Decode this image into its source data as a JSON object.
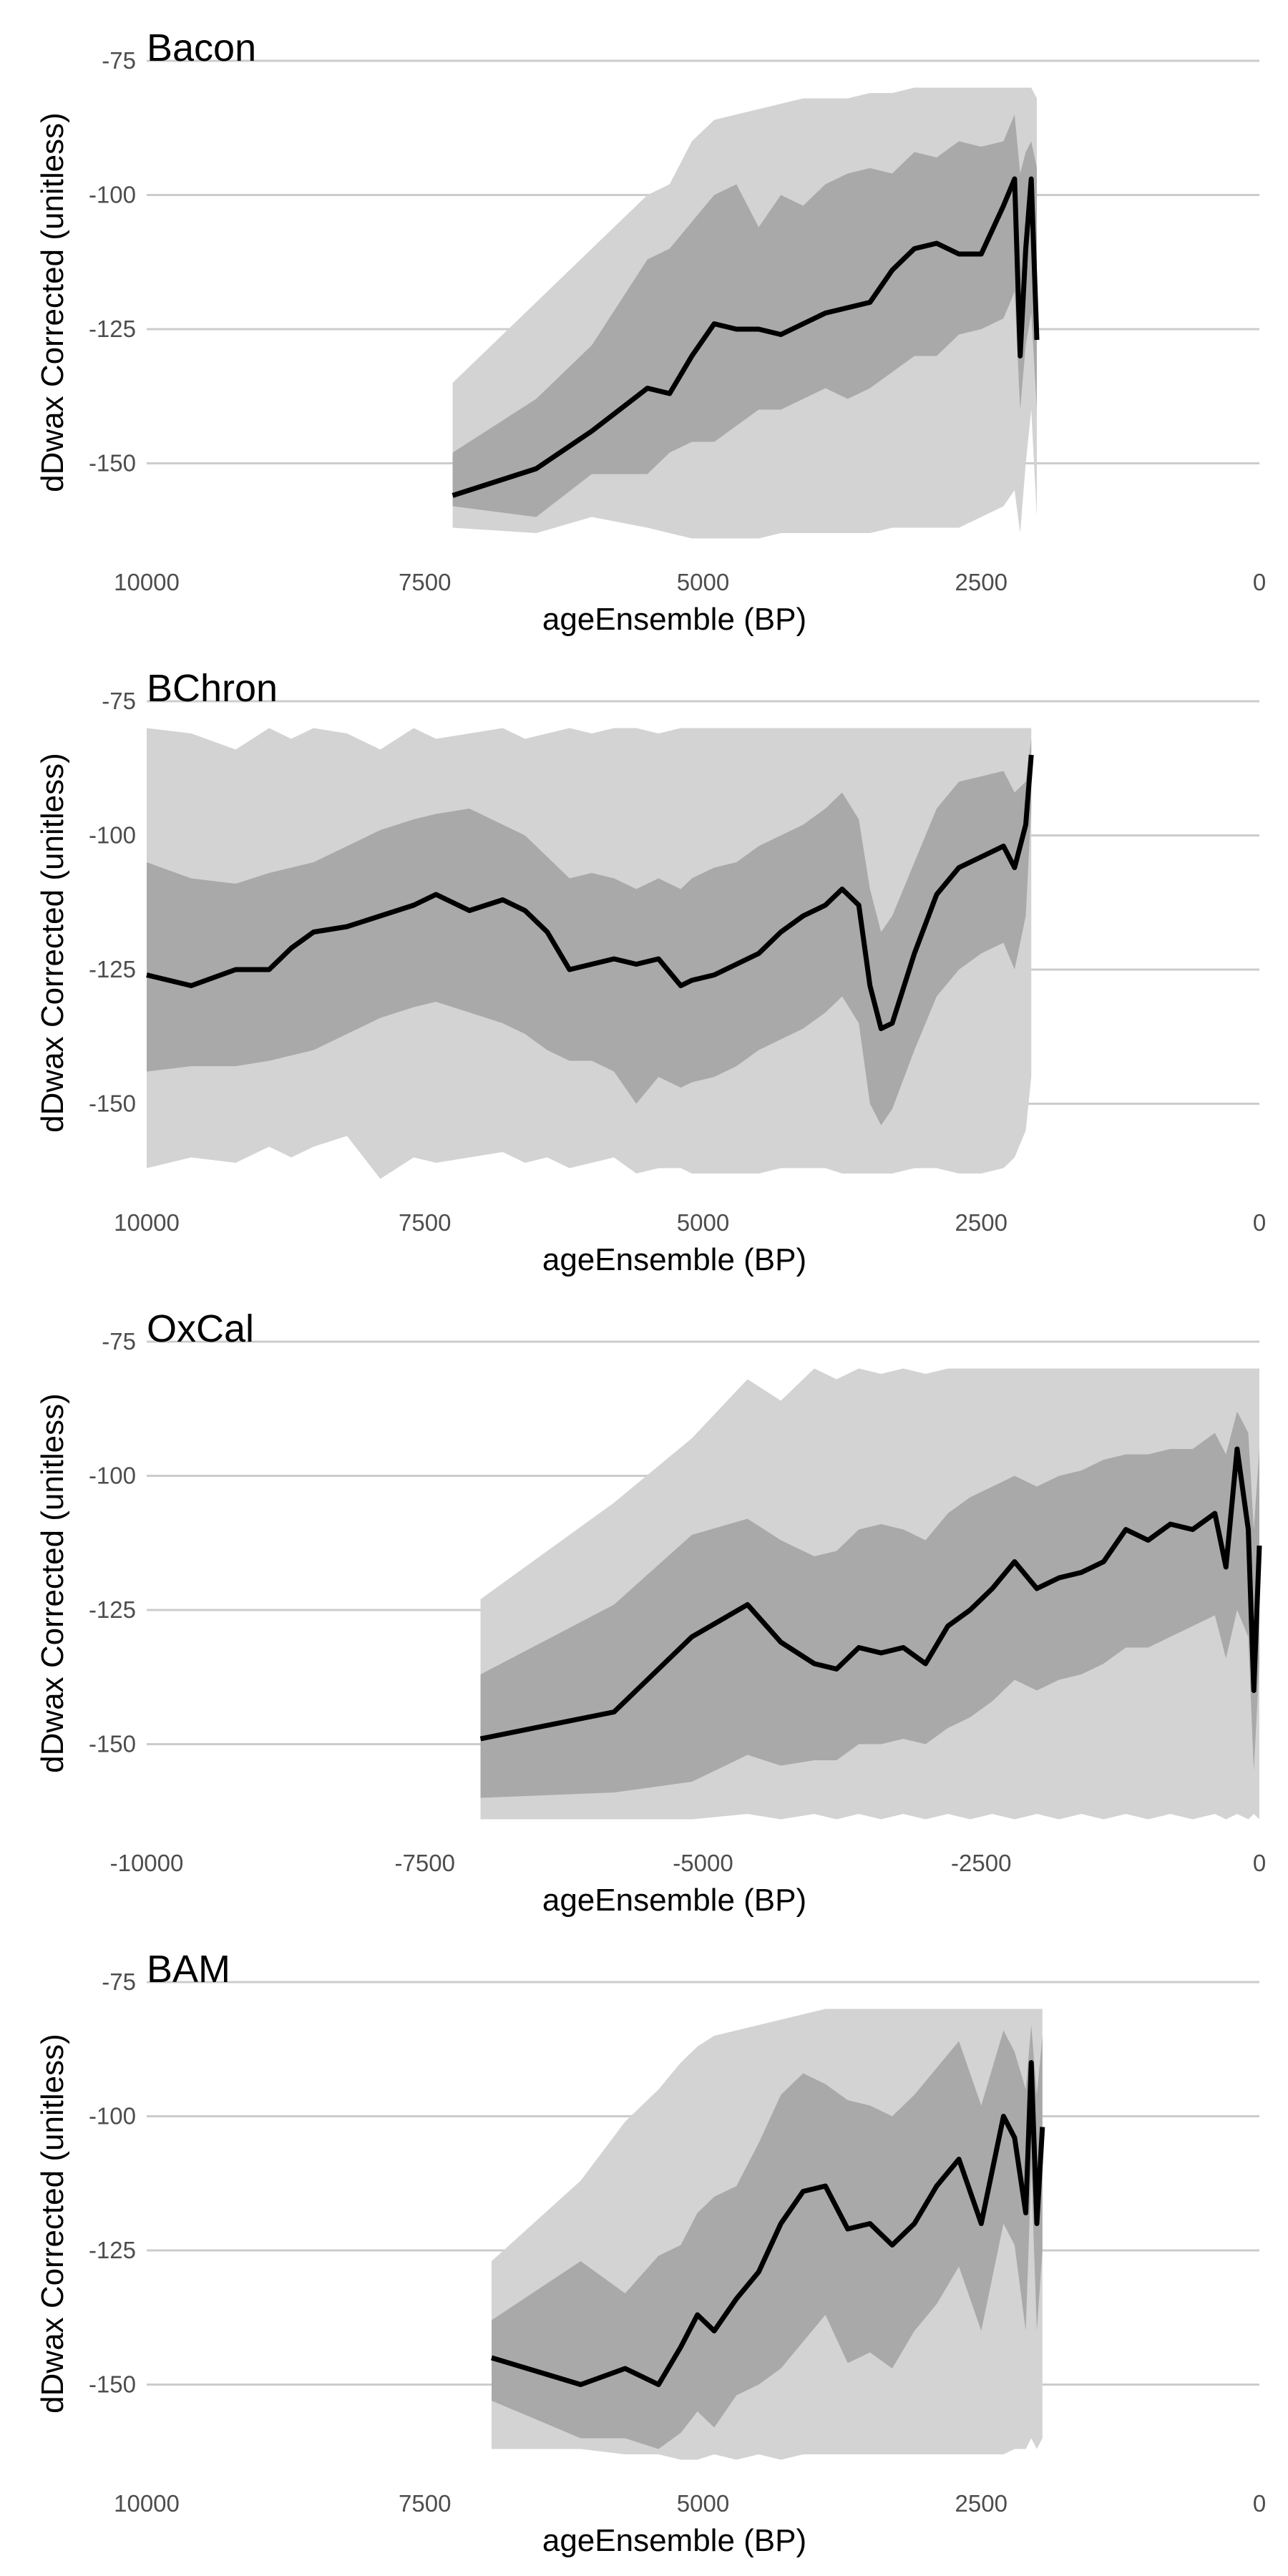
{
  "chart_data": [
    {
      "type": "area",
      "title": "Bacon",
      "xlabel": "ageEnsemble (BP)",
      "ylabel": "dDwax Corrected (unitless)",
      "x_reversed": true,
      "xlim": [
        10000,
        0
      ],
      "ylim": [
        -165,
        -75
      ],
      "xticks": [
        10000,
        7500,
        5000,
        2500,
        0
      ],
      "xtick_labels": [
        "10000",
        "7500",
        "5000",
        "2500",
        "0"
      ],
      "yticks": [
        -150,
        -125,
        -100,
        -75
      ],
      "ytick_labels": [
        "-150",
        "-125",
        "-100",
        "-75"
      ],
      "grid": "horizontal",
      "legend": "none",
      "colors": {
        "outer_band": "#d3d3d3",
        "inner_band": "#a9a9a9",
        "median": "#000000",
        "grid": "#cccccc"
      },
      "x": [
        7250,
        6500,
        6000,
        5500,
        5300,
        5100,
        4900,
        4700,
        4500,
        4300,
        4100,
        3900,
        3700,
        3500,
        3300,
        3100,
        2900,
        2700,
        2500,
        2300,
        2200,
        2150,
        2100,
        2050,
        2000
      ],
      "median": [
        -156,
        -151,
        -144,
        -136,
        -137,
        -130,
        -124,
        -125,
        -125,
        -126,
        -124,
        -122,
        -121,
        -120,
        -114,
        -110,
        -109,
        -111,
        -111,
        -102,
        -97,
        -130,
        -110,
        -97,
        -127
      ],
      "inner_upper": [
        -148,
        -138,
        -128,
        -112,
        -110,
        -105,
        -100,
        -98,
        -106,
        -100,
        -102,
        -98,
        -96,
        -95,
        -96,
        -92,
        -93,
        -90,
        -91,
        -90,
        -85,
        -96,
        -92,
        -90,
        -95
      ],
      "inner_lower": [
        -158,
        -160,
        -152,
        -152,
        -148,
        -146,
        -146,
        -143,
        -140,
        -140,
        -138,
        -136,
        -138,
        -136,
        -133,
        -130,
        -130,
        -126,
        -125,
        -123,
        -118,
        -140,
        -128,
        -122,
        -140
      ],
      "outer_upper": [
        -135,
        -120,
        -110,
        -100,
        -98,
        -90,
        -86,
        -85,
        -84,
        -83,
        -82,
        -82,
        -82,
        -81,
        -81,
        -80,
        -80,
        -80,
        -80,
        -80,
        -80,
        -80,
        -80,
        -80,
        -82
      ],
      "outer_lower": [
        -162,
        -163,
        -160,
        -162,
        -163,
        -164,
        -164,
        -164,
        -164,
        -163,
        -163,
        -163,
        -163,
        -163,
        -162,
        -162,
        -162,
        -162,
        -160,
        -158,
        -155,
        -163,
        -150,
        -140,
        -160
      ]
    },
    {
      "type": "area",
      "title": "BChron",
      "xlabel": "ageEnsemble (BP)",
      "ylabel": "dDwax Corrected (unitless)",
      "x_reversed": true,
      "xlim": [
        10000,
        0
      ],
      "ylim": [
        -165,
        -75
      ],
      "xticks": [
        10000,
        7500,
        5000,
        2500,
        0
      ],
      "xtick_labels": [
        "10000",
        "7500",
        "5000",
        "2500",
        "0"
      ],
      "yticks": [
        -150,
        -125,
        -100,
        -75
      ],
      "ytick_labels": [
        "-150",
        "-125",
        "-100",
        "-75"
      ],
      "grid": "horizontal",
      "legend": "none",
      "colors": {
        "outer_band": "#d3d3d3",
        "inner_band": "#a9a9a9",
        "median": "#000000",
        "grid": "#cccccc"
      },
      "x": [
        10000,
        9600,
        9200,
        8900,
        8700,
        8500,
        8200,
        7900,
        7600,
        7400,
        7100,
        6800,
        6600,
        6400,
        6200,
        6000,
        5800,
        5600,
        5400,
        5200,
        5100,
        4900,
        4700,
        4500,
        4300,
        4100,
        3900,
        3750,
        3600,
        3500,
        3400,
        3300,
        3100,
        2900,
        2700,
        2500,
        2300,
        2200,
        2100,
        2050
      ],
      "median": [
        -126,
        -128,
        -125,
        -125,
        -121,
        -118,
        -117,
        -115,
        -113,
        -111,
        -114,
        -112,
        -114,
        -118,
        -125,
        -124,
        -123,
        -124,
        -123,
        -128,
        -127,
        -126,
        -124,
        -122,
        -118,
        -115,
        -113,
        -110,
        -113,
        -128,
        -136,
        -135,
        -122,
        -111,
        -106,
        -104,
        -102,
        -106,
        -98,
        -85
      ],
      "inner_upper": [
        -105,
        -108,
        -109,
        -107,
        -106,
        -105,
        -102,
        -99,
        -97,
        -96,
        -95,
        -98,
        -100,
        -104,
        -108,
        -107,
        -108,
        -110,
        -108,
        -110,
        -108,
        -106,
        -105,
        -102,
        -100,
        -98,
        -95,
        -92,
        -97,
        -110,
        -118,
        -115,
        -105,
        -95,
        -90,
        -89,
        -88,
        -92,
        -90,
        -82
      ],
      "inner_lower": [
        -144,
        -143,
        -143,
        -142,
        -141,
        -140,
        -137,
        -134,
        -132,
        -131,
        -133,
        -135,
        -137,
        -140,
        -142,
        -142,
        -144,
        -150,
        -145,
        -147,
        -146,
        -145,
        -143,
        -140,
        -138,
        -136,
        -133,
        -130,
        -135,
        -150,
        -154,
        -151,
        -140,
        -130,
        -125,
        -122,
        -120,
        -125,
        -115,
        -95
      ],
      "outer_upper": [
        -80,
        -81,
        -84,
        -80,
        -82,
        -80,
        -81,
        -84,
        -80,
        -82,
        -81,
        -80,
        -82,
        -81,
        -80,
        -81,
        -80,
        -80,
        -81,
        -80,
        -80,
        -80,
        -80,
        -80,
        -80,
        -80,
        -80,
        -80,
        -80,
        -80,
        -80,
        -80,
        -80,
        -80,
        -80,
        -80,
        -80,
        -80,
        -80,
        -80
      ],
      "outer_lower": [
        -162,
        -160,
        -161,
        -158,
        -160,
        -158,
        -156,
        -164,
        -160,
        -161,
        -160,
        -159,
        -161,
        -160,
        -162,
        -161,
        -160,
        -163,
        -162,
        -162,
        -163,
        -163,
        -163,
        -163,
        -162,
        -162,
        -162,
        -163,
        -163,
        -163,
        -163,
        -163,
        -162,
        -162,
        -163,
        -163,
        -162,
        -160,
        -155,
        -145
      ]
    },
    {
      "type": "area",
      "title": "OxCal",
      "xlabel": "ageEnsemble (BP)",
      "ylabel": "dDwax Corrected (unitless)",
      "x_reversed": false,
      "xlim": [
        -10000,
        0
      ],
      "ylim": [
        -165,
        -75
      ],
      "xticks": [
        -10000,
        -7500,
        -5000,
        -2500,
        0
      ],
      "xtick_labels": [
        "-10000",
        "-7500",
        "-5000",
        "-2500",
        "0"
      ],
      "yticks": [
        -150,
        -125,
        -100,
        -75
      ],
      "ytick_labels": [
        "-150",
        "-125",
        "-100",
        "-75"
      ],
      "grid": "horizontal",
      "legend": "none",
      "colors": {
        "outer_band": "#d3d3d3",
        "inner_band": "#a9a9a9",
        "median": "#000000",
        "grid": "#cccccc"
      },
      "x": [
        -7000,
        -5800,
        -5100,
        -4600,
        -4300,
        -4000,
        -3800,
        -3600,
        -3400,
        -3200,
        -3000,
        -2800,
        -2600,
        -2400,
        -2200,
        -2000,
        -1800,
        -1600,
        -1400,
        -1200,
        -1000,
        -800,
        -600,
        -400,
        -300,
        -200,
        -100,
        -50,
        0
      ],
      "median": [
        -149,
        -144,
        -130,
        -124,
        -131,
        -135,
        -136,
        -132,
        -133,
        -132,
        -135,
        -128,
        -125,
        -121,
        -116,
        -121,
        -119,
        -118,
        -116,
        -110,
        -112,
        -109,
        -110,
        -107,
        -117,
        -95,
        -110,
        -140,
        -113
      ],
      "inner_upper": [
        -137,
        -124,
        -111,
        -108,
        -112,
        -115,
        -114,
        -110,
        -109,
        -110,
        -112,
        -107,
        -104,
        -102,
        -100,
        -102,
        -100,
        -99,
        -97,
        -96,
        -96,
        -95,
        -95,
        -92,
        -96,
        -88,
        -92,
        -110,
        -95
      ],
      "inner_lower": [
        -160,
        -159,
        -157,
        -152,
        -154,
        -153,
        -153,
        -150,
        -150,
        -149,
        -150,
        -147,
        -145,
        -142,
        -138,
        -140,
        -138,
        -137,
        -135,
        -132,
        -132,
        -130,
        -128,
        -126,
        -134,
        -125,
        -130,
        -155,
        -135
      ],
      "outer_upper": [
        -123,
        -105,
        -93,
        -82,
        -86,
        -80,
        -82,
        -80,
        -81,
        -80,
        -81,
        -80,
        -80,
        -80,
        -80,
        -80,
        -80,
        -80,
        -80,
        -80,
        -80,
        -80,
        -80,
        -80,
        -80,
        -80,
        -80,
        -80,
        -80
      ],
      "outer_lower": [
        -164,
        -164,
        -164,
        -163,
        -164,
        -163,
        -164,
        -163,
        -164,
        -163,
        -164,
        -163,
        -164,
        -163,
        -164,
        -163,
        -164,
        -163,
        -164,
        -163,
        -164,
        -163,
        -164,
        -163,
        -164,
        -163,
        -164,
        -163,
        -164
      ]
    },
    {
      "type": "area",
      "title": "BAM",
      "xlabel": "ageEnsemble (BP)",
      "ylabel": "dDwax Corrected (unitless)",
      "x_reversed": true,
      "xlim": [
        10000,
        0
      ],
      "ylim": [
        -165,
        -75
      ],
      "xticks": [
        10000,
        7500,
        5000,
        2500,
        0
      ],
      "xtick_labels": [
        "10000",
        "7500",
        "5000",
        "2500",
        "0"
      ],
      "yticks": [
        -150,
        -125,
        -100,
        -75
      ],
      "ytick_labels": [
        "-150",
        "-125",
        "-100",
        "-75"
      ],
      "grid": "horizontal",
      "legend": "none",
      "colors": {
        "outer_band": "#d3d3d3",
        "inner_band": "#a9a9a9",
        "median": "#000000",
        "grid": "#cccccc"
      },
      "x": [
        6900,
        6100,
        5700,
        5400,
        5200,
        5050,
        4900,
        4700,
        4500,
        4300,
        4100,
        3900,
        3700,
        3500,
        3300,
        3100,
        2900,
        2700,
        2500,
        2300,
        2200,
        2100,
        2050,
        2000,
        1950
      ],
      "median": [
        -145,
        -150,
        -147,
        -150,
        -143,
        -137,
        -140,
        -134,
        -129,
        -120,
        -114,
        -113,
        -121,
        -120,
        -124,
        -120,
        -113,
        -108,
        -120,
        -100,
        -104,
        -118,
        -90,
        -120,
        -102
      ],
      "inner_upper": [
        -138,
        -127,
        -133,
        -126,
        -124,
        -118,
        -115,
        -113,
        -105,
        -96,
        -92,
        -94,
        -97,
        -98,
        -100,
        -96,
        -91,
        -86,
        -98,
        -84,
        -88,
        -95,
        -83,
        -96,
        -85
      ],
      "inner_lower": [
        -153,
        -160,
        -160,
        -162,
        -159,
        -155,
        -158,
        -152,
        -150,
        -147,
        -142,
        -137,
        -146,
        -144,
        -147,
        -140,
        -135,
        -128,
        -140,
        -120,
        -124,
        -140,
        -110,
        -140,
        -125
      ],
      "outer_upper": [
        -127,
        -112,
        -101,
        -95,
        -90,
        -87,
        -85,
        -84,
        -83,
        -82,
        -81,
        -80,
        -80,
        -80,
        -80,
        -80,
        -80,
        -80,
        -80,
        -80,
        -80,
        -80,
        -80,
        -80,
        -80
      ],
      "outer_lower": [
        -162,
        -162,
        -163,
        -163,
        -164,
        -164,
        -163,
        -164,
        -163,
        -164,
        -163,
        -163,
        -163,
        -163,
        -163,
        -163,
        -163,
        -163,
        -163,
        -163,
        -162,
        -162,
        -160,
        -162,
        -160
      ]
    }
  ]
}
